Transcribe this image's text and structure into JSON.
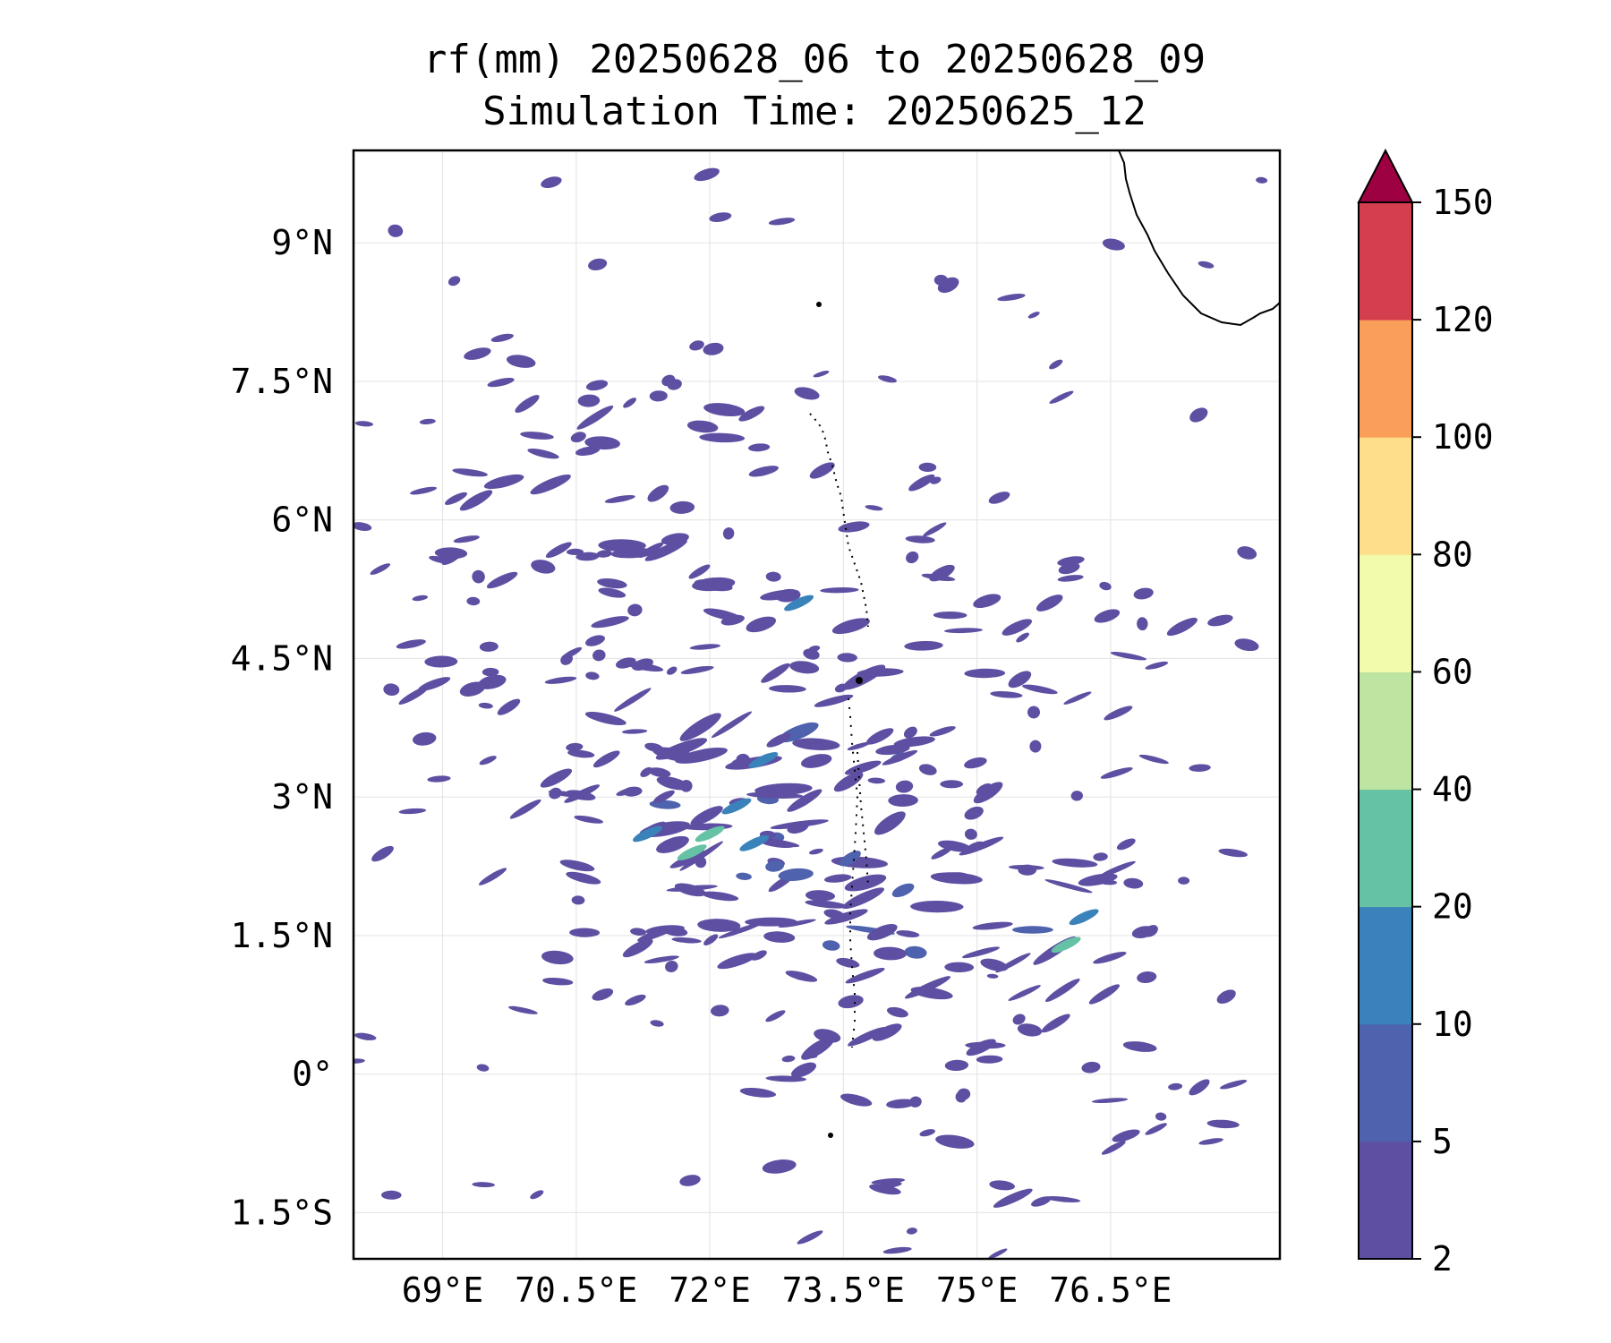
{
  "title": {
    "line1": "rf(mm) 20250628_06 to 20250628_09",
    "line2": "Simulation Time: 20250625_12"
  },
  "map": {
    "lon_range": [
      68.0,
      78.4
    ],
    "lat_range": [
      -2.0,
      10.0
    ],
    "x_ticks": [
      {
        "value": 69.0,
        "label": "69°E"
      },
      {
        "value": 70.5,
        "label": "70.5°E"
      },
      {
        "value": 72.0,
        "label": "72°E"
      },
      {
        "value": 73.5,
        "label": "73.5°E"
      },
      {
        "value": 75.0,
        "label": "75°E"
      },
      {
        "value": 76.5,
        "label": "76.5°E"
      }
    ],
    "y_ticks": [
      {
        "value": 9.0,
        "label": "9°N"
      },
      {
        "value": 7.5,
        "label": "7.5°N"
      },
      {
        "value": 6.0,
        "label": "6°N"
      },
      {
        "value": 4.5,
        "label": "4.5°N"
      },
      {
        "value": 3.0,
        "label": "3°N"
      },
      {
        "value": 1.5,
        "label": "1.5°N"
      },
      {
        "value": 0.0,
        "label": "0°"
      },
      {
        "value": -1.5,
        "label": "1.5°S"
      }
    ],
    "gridlines": true,
    "coastline_color": "#000000"
  },
  "colorbar": {
    "levels": [
      "2",
      "5",
      "10",
      "20",
      "40",
      "60",
      "80",
      "100",
      "120",
      "150"
    ],
    "colors": [
      "#5e4fa2",
      "#4e62ad",
      "#3a82ba",
      "#66c2a5",
      "#bde4a0",
      "#f2faac",
      "#fddf8b",
      "#f99f5a",
      "#d43e4f"
    ],
    "extend_color": "#9e0142",
    "extend": "max"
  },
  "rain_field": {
    "dominant_color": "#5e4fa2",
    "secondary_color": "#4e62ad",
    "highlight_color": "#3a82ba",
    "peak_color": "#66c2a5"
  }
}
